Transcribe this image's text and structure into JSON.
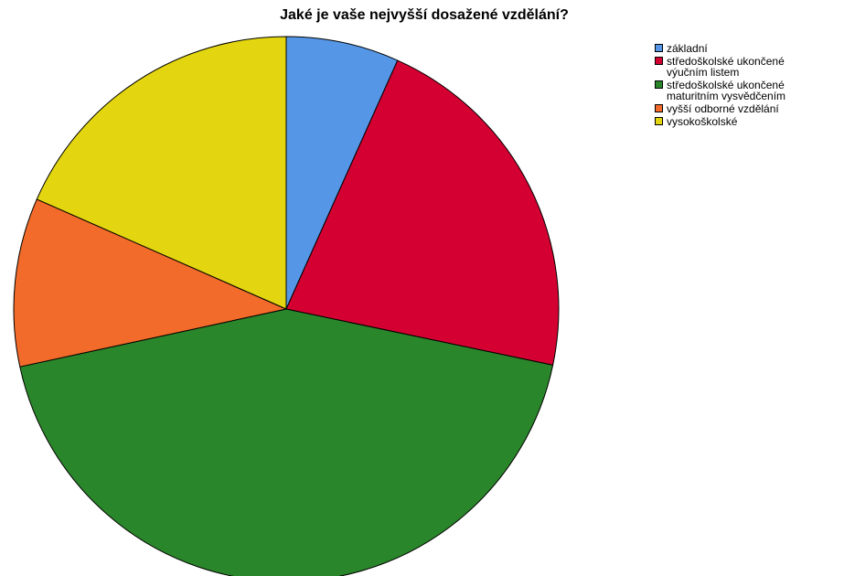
{
  "chart_data": {
    "type": "pie",
    "title": "Jaké je vaše nejvyšší dosažené vzdělání?",
    "start_angle_deg": 0,
    "direction": "clockwise",
    "legend_position": "top-right",
    "slices": [
      {
        "label": "základní",
        "value": 6.7,
        "color": "#5597E6"
      },
      {
        "label": "středoškolské ukončené výučním listem",
        "value": 21.6,
        "color": "#D50032"
      },
      {
        "label": "středoškolské ukončené maturitním vysvědčením",
        "value": 43.3,
        "color": "#2A862A"
      },
      {
        "label": "vyšší odborné vzdělání",
        "value": 10.0,
        "color": "#F26B2A"
      },
      {
        "label": "vysokoškolské",
        "value": 18.4,
        "color": "#E3D610"
      }
    ]
  },
  "legend": {
    "entries": [
      {
        "lines": [
          "základní"
        ],
        "color": "#5597E6"
      },
      {
        "lines": [
          "středoškolské ukončené",
          "výučním listem"
        ],
        "color": "#D50032"
      },
      {
        "lines": [
          "středoškolské ukončené",
          "maturitním vysvědčením"
        ],
        "color": "#2A862A"
      },
      {
        "lines": [
          "vyšší odborné vzdělání"
        ],
        "color": "#F26B2A"
      },
      {
        "lines": [
          "vysokoškolské"
        ],
        "color": "#E3D610"
      }
    ]
  }
}
